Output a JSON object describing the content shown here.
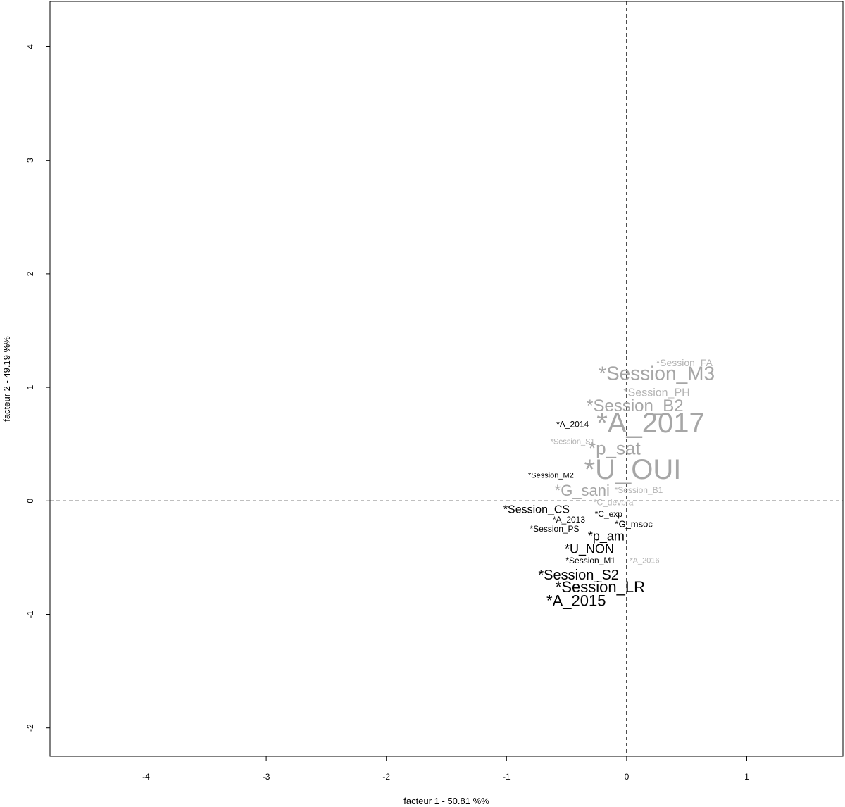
{
  "chart_data": {
    "type": "scatter",
    "title": "",
    "xlabel": "facteur  1  - 50.81 %%",
    "ylabel": "facteur  2  - 49.19 %%",
    "xlim": [
      -4.8,
      1.8
    ],
    "ylim": [
      -2.25,
      4.4
    ],
    "xticks": [
      -4,
      -3,
      -2,
      -1,
      0,
      1
    ],
    "yticks": [
      -2,
      -1,
      0,
      1,
      2,
      3,
      4
    ],
    "ref_lines": {
      "x": 0,
      "y": 0,
      "style": "dashed"
    },
    "grid": false,
    "points": [
      {
        "label": "*Session_FA",
        "x": 0.48,
        "y": 1.21,
        "size": 14,
        "color": "#b3b3b3"
      },
      {
        "label": "*Session_M3",
        "x": 0.25,
        "y": 1.11,
        "size": 28,
        "color": "#a6a6a6"
      },
      {
        "label": "*Session_PH",
        "x": 0.25,
        "y": 0.95,
        "size": 16,
        "color": "#b3b3b3"
      },
      {
        "label": "*Session_B2",
        "x": 0.07,
        "y": 0.83,
        "size": 24,
        "color": "#a6a6a6"
      },
      {
        "label": "*A_2017",
        "x": 0.2,
        "y": 0.67,
        "size": 40,
        "color": "#a6a6a6"
      },
      {
        "label": "*A_2014",
        "x": -0.45,
        "y": 0.67,
        "size": 12,
        "color": "#000000"
      },
      {
        "label": "*Session_S1",
        "x": -0.45,
        "y": 0.52,
        "size": 11,
        "color": "#b3b3b3"
      },
      {
        "label": "*p_sat",
        "x": -0.1,
        "y": 0.45,
        "size": 26,
        "color": "#a6a6a6"
      },
      {
        "label": "*U_OUI",
        "x": 0.05,
        "y": 0.26,
        "size": 40,
        "color": "#a6a6a6"
      },
      {
        "label": "*Session_M2",
        "x": -0.63,
        "y": 0.22,
        "size": 11,
        "color": "#000000"
      },
      {
        "label": "*G_sani",
        "x": -0.37,
        "y": 0.08,
        "size": 22,
        "color": "#a6a6a6"
      },
      {
        "label": "*Session_B1",
        "x": 0.1,
        "y": 0.09,
        "size": 12,
        "color": "#b3b3b3"
      },
      {
        "label": "*C_devpra",
        "x": -0.11,
        "y": -0.02,
        "size": 12,
        "color": "#b3b3b3"
      },
      {
        "label": "*Session_CS",
        "x": -0.75,
        "y": -0.08,
        "size": 16,
        "color": "#000000"
      },
      {
        "label": "*C_exp",
        "x": -0.15,
        "y": -0.12,
        "size": 12,
        "color": "#000000"
      },
      {
        "label": "*A_2013",
        "x": -0.48,
        "y": -0.17,
        "size": 12,
        "color": "#000000"
      },
      {
        "label": "*G_msoc",
        "x": 0.06,
        "y": -0.21,
        "size": 13,
        "color": "#000000"
      },
      {
        "label": "*Session_PS",
        "x": -0.6,
        "y": -0.25,
        "size": 12,
        "color": "#000000"
      },
      {
        "label": "*p_am",
        "x": -0.17,
        "y": -0.32,
        "size": 18,
        "color": "#000000"
      },
      {
        "label": "*U_NON",
        "x": -0.31,
        "y": -0.43,
        "size": 18,
        "color": "#000000"
      },
      {
        "label": "*Session_M1",
        "x": -0.3,
        "y": -0.53,
        "size": 12,
        "color": "#000000"
      },
      {
        "label": "*A_2016",
        "x": 0.15,
        "y": -0.53,
        "size": 11,
        "color": "#b3b3b3"
      },
      {
        "label": "*Session_S2",
        "x": -0.4,
        "y": -0.66,
        "size": 20,
        "color": "#000000"
      },
      {
        "label": "*Session_LR",
        "x": -0.22,
        "y": -0.77,
        "size": 22,
        "color": "#000000"
      },
      {
        "label": "*A_2015",
        "x": -0.42,
        "y": -0.89,
        "size": 22,
        "color": "#000000"
      }
    ]
  }
}
